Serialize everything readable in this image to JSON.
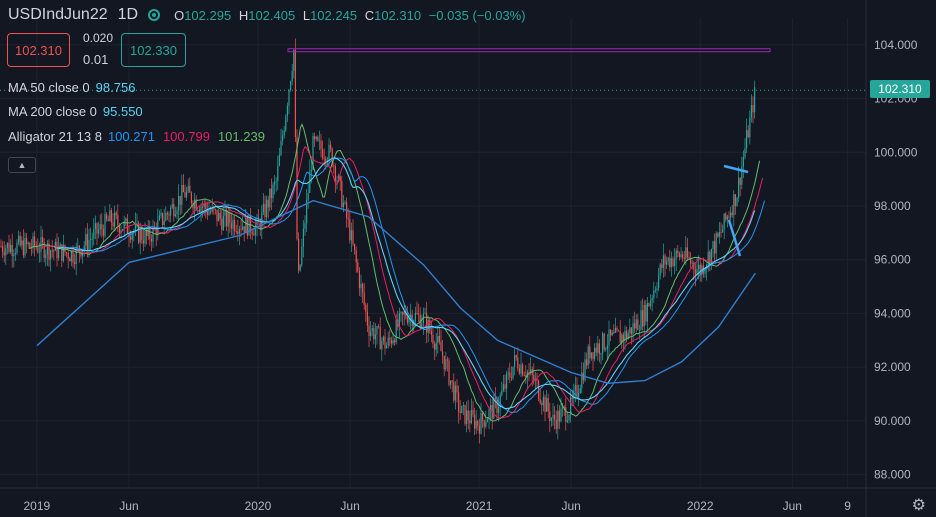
{
  "header": {
    "symbol": "USDIndJun22",
    "timeframe": "1D",
    "ohlc": {
      "o_label": "O",
      "o": "102.295",
      "h_label": "H",
      "h": "102.405",
      "l_label": "L",
      "l": "102.245",
      "c_label": "C",
      "c": "102.310",
      "change": "−0.035 (−0.03%)"
    }
  },
  "trade": {
    "sell": "102.310",
    "spread_top": "0.020",
    "spread_bottom": "0.01",
    "buy": "102.330"
  },
  "indicators": [
    {
      "name": "MA 50 close 0",
      "values": [
        "98.756"
      ],
      "colors": [
        "#5dd3f3"
      ]
    },
    {
      "name": "MA 200 close 0",
      "values": [
        "95.550"
      ],
      "colors": [
        "#5dd3f3"
      ]
    },
    {
      "name": "Alligator 21 13 8",
      "values": [
        "100.271",
        "100.799",
        "101.239"
      ],
      "colors": [
        "#2196f3",
        "#e91e63",
        "#66bb6a"
      ]
    }
  ],
  "icons": {
    "collapse": "chevron-up-icon",
    "eye": "eye-icon",
    "settings": "gear-icon"
  },
  "colors": {
    "up": "#26a69a",
    "down": "#ef5350",
    "ma": "#2f7fd0",
    "hline": "#9c27b0",
    "trendline": "#42a5f5",
    "background": "#131722"
  },
  "last_price_label": "102.310",
  "chart_data": {
    "type": "candlestick",
    "y_ticks": [
      "104.000",
      "102.000",
      "100.000",
      "98.000",
      "96.000",
      "94.000",
      "92.000",
      "90.000",
      "88.000"
    ],
    "x_ticks": [
      "2019",
      "Jun",
      "2020",
      "Jun",
      "2021",
      "Jun",
      "2022",
      "Jun",
      "9"
    ],
    "ylim": [
      87.5,
      105.0
    ],
    "horizontal_line": 103.8,
    "last_price": 102.31,
    "price_path": [
      [
        "2019-01",
        96.5
      ],
      [
        "2019-03",
        96.2
      ],
      [
        "2019-05",
        97.5
      ],
      [
        "2019-07",
        96.8
      ],
      [
        "2019-09",
        98.5
      ],
      [
        "2019-11",
        97.5
      ],
      [
        "2020-01",
        97.2
      ],
      [
        "2020-02",
        98.9
      ],
      [
        "2020-03",
        103.8
      ],
      [
        "2020-03",
        95.0
      ],
      [
        "2020-04",
        100.3
      ],
      [
        "2020-05",
        99.9
      ],
      [
        "2020-06",
        97.0
      ],
      [
        "2020-07",
        93.5
      ],
      [
        "2020-08",
        92.8
      ],
      [
        "2020-09",
        94.0
      ],
      [
        "2020-10",
        93.8
      ],
      [
        "2020-11",
        92.5
      ],
      [
        "2020-12",
        90.3
      ],
      [
        "2021-01",
        89.9
      ],
      [
        "2021-02",
        90.6
      ],
      [
        "2021-03",
        92.3
      ],
      [
        "2021-04",
        91.5
      ],
      [
        "2021-05",
        90.0
      ],
      [
        "2021-06",
        90.5
      ],
      [
        "2021-07",
        92.6
      ],
      [
        "2021-08",
        93.0
      ],
      [
        "2021-09",
        93.2
      ],
      [
        "2021-10",
        94.0
      ],
      [
        "2021-11",
        95.9
      ],
      [
        "2021-12",
        96.2
      ],
      [
        "2022-01",
        95.6
      ],
      [
        "2022-02",
        96.8
      ],
      [
        "2022-03",
        98.5
      ],
      [
        "2022-04",
        102.3
      ]
    ],
    "ma200_path": [
      [
        "2019-01",
        92.8
      ],
      [
        "2019-06",
        95.9
      ],
      [
        "2019-12",
        96.9
      ],
      [
        "2020-04",
        98.2
      ],
      [
        "2020-07",
        97.6
      ],
      [
        "2020-10",
        95.8
      ],
      [
        "2020-12",
        94.2
      ],
      [
        "2021-02",
        93.0
      ],
      [
        "2021-04",
        92.4
      ],
      [
        "2021-06",
        91.8
      ],
      [
        "2021-08",
        91.4
      ],
      [
        "2021-10",
        91.5
      ],
      [
        "2021-12",
        92.2
      ],
      [
        "2022-02",
        93.5
      ],
      [
        "2022-04",
        95.5
      ]
    ]
  }
}
